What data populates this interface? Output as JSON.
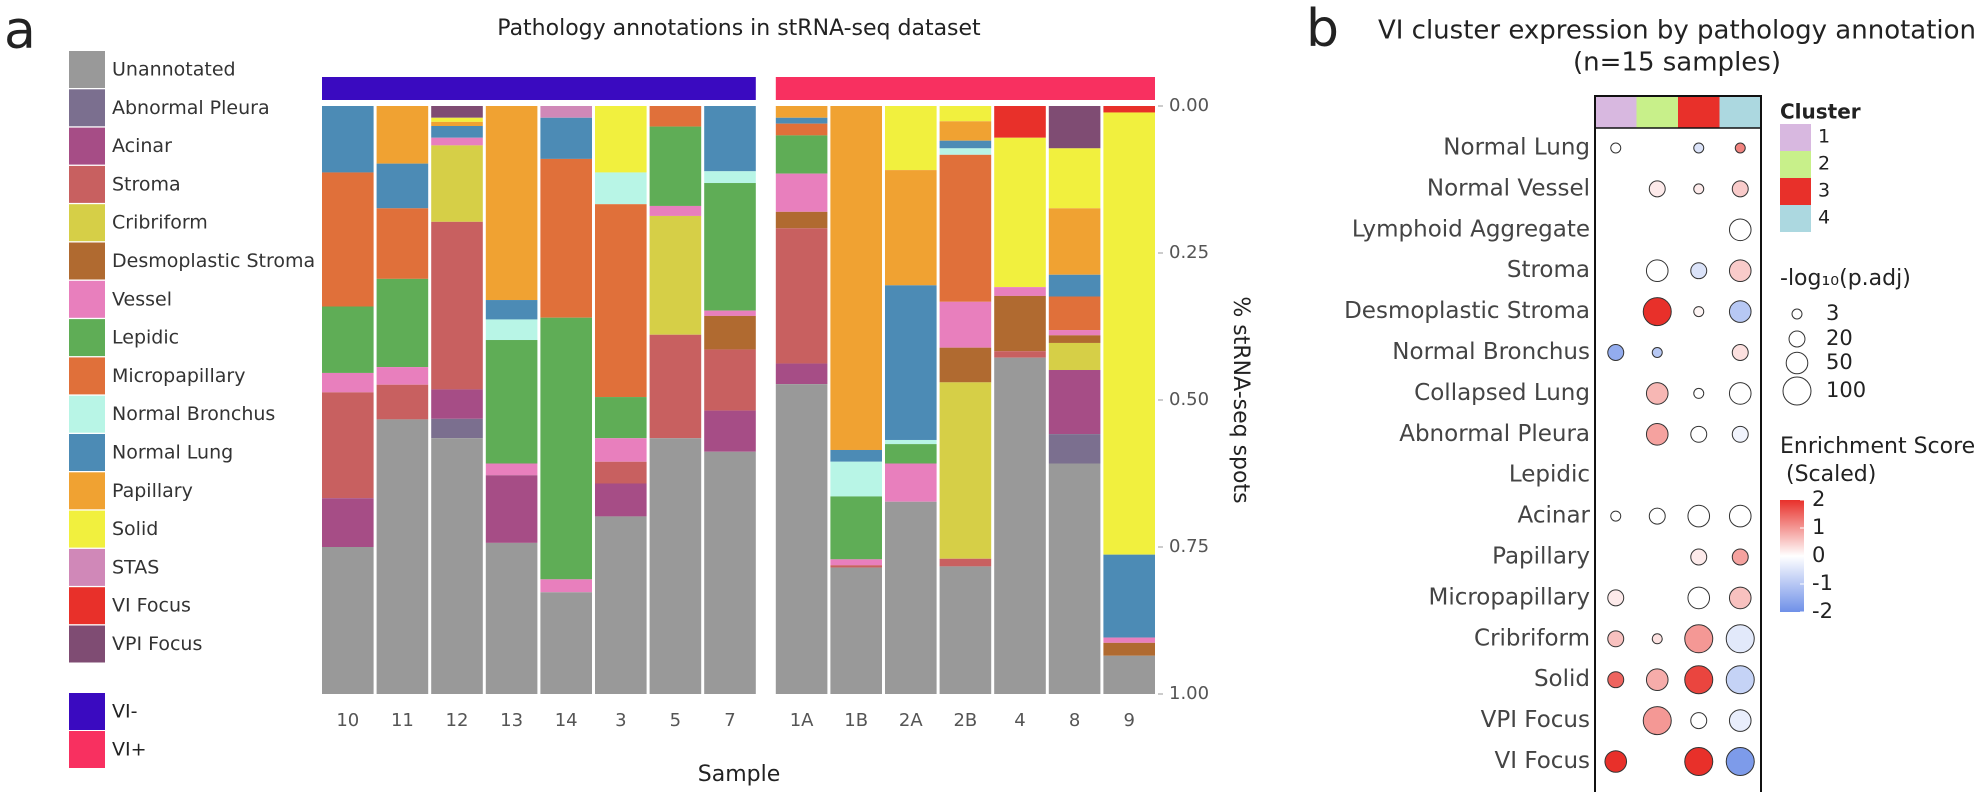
{
  "chart_data": [
    {
      "type": "stacked_bar",
      "panel_label": "a",
      "title": "Pathology annotations in stRNA-seq dataset",
      "xlabel": "Sample",
      "ylabel": "% stRNA-seq spots",
      "categories": [
        "10",
        "11",
        "12",
        "13",
        "14",
        "3",
        "5",
        "7",
        "1A",
        "1B",
        "2A",
        "2B",
        "4",
        "8",
        "9"
      ],
      "ylim": [
        0,
        1
      ],
      "y_inverted": true,
      "yticks": [
        {
          "value": 0,
          "label": "0.00"
        },
        {
          "value": 0.25,
          "label": "0.25"
        },
        {
          "value": 0.5,
          "label": "0.50"
        },
        {
          "value": 0.75,
          "label": "0.75"
        },
        {
          "value": 1,
          "label": "1.00"
        }
      ],
      "groups": [
        {
          "name": "VI-",
          "color": "#3a0ac0",
          "members": [
            "10",
            "11",
            "12",
            "13",
            "14",
            "3",
            "5",
            "7"
          ]
        },
        {
          "name": "VI+",
          "color": "#f83060",
          "members": [
            "1A",
            "1B",
            "2A",
            "2B",
            "4",
            "8",
            "9"
          ]
        }
      ],
      "series": [
        {
          "name": "Unannotated",
          "color": "#999999",
          "values": [
            0.25,
            0.467,
            0.435,
            0.257,
            0.173,
            0.302,
            0.435,
            0.412,
            0.527,
            0.215,
            0.327,
            0.217,
            0.572,
            0.392,
            0.065
          ]
        },
        {
          "name": "Abnormal Pleura",
          "color": "#7b6f8f",
          "values": [
            0,
            0,
            0.033,
            0,
            0,
            0,
            0,
            0,
            0,
            0,
            0,
            0,
            0,
            0.05,
            0
          ]
        },
        {
          "name": "Acinar",
          "color": "#a64d86",
          "values": [
            0.083,
            0,
            0.05,
            0.115,
            0,
            0.056,
            0,
            0.07,
            0.035,
            0,
            0,
            0,
            0,
            0.109,
            0
          ]
        },
        {
          "name": "Stroma",
          "color": "#c86060",
          "values": [
            0.18,
            0.059,
            0.285,
            0,
            0,
            0.037,
            0.176,
            0.104,
            0.23,
            0.004,
            0,
            0.013,
            0.011,
            0,
            0
          ]
        },
        {
          "name": "Cribriform",
          "color": "#d6cf47",
          "values": [
            0,
            0,
            0.13,
            0,
            0,
            0,
            0.202,
            0,
            0,
            0,
            0,
            0.3,
            0,
            0.046,
            0
          ]
        },
        {
          "name": "Desmoplastic Stroma",
          "color": "#b06a30",
          "values": [
            0,
            0,
            0,
            0,
            0,
            0,
            0,
            0.057,
            0.028,
            0,
            0,
            0.059,
            0.094,
            0.013,
            0.022
          ]
        },
        {
          "name": "Vessel",
          "color": "#e87fbd",
          "values": [
            0.033,
            0.03,
            0.013,
            0.02,
            0.022,
            0.04,
            0.017,
            0.009,
            0.065,
            0.01,
            0.065,
            0.078,
            0.015,
            0.009,
            0.009
          ]
        },
        {
          "name": "Lepidic",
          "color": "#5fad56",
          "values": [
            0.113,
            0.15,
            0,
            0.21,
            0.445,
            0.07,
            0.135,
            0.217,
            0.065,
            0.107,
            0.033,
            0,
            0,
            0,
            0
          ]
        },
        {
          "name": "Micropapillary",
          "color": "#e0703a",
          "values": [
            0.228,
            0.12,
            0,
            0,
            0.27,
            0.328,
            0.035,
            0,
            0.02,
            0,
            0,
            0.25,
            0,
            0.057,
            0
          ]
        },
        {
          "name": "Normal Bronchus",
          "color": "#b8f5e6",
          "values": [
            0,
            0,
            0,
            0.035,
            0,
            0.054,
            0,
            0.02,
            0,
            0.059,
            0.007,
            0.011,
            0,
            0,
            0
          ]
        },
        {
          "name": "Normal Lung",
          "color": "#4c8bb5",
          "values": [
            0.113,
            0.076,
            0.02,
            0.033,
            0.07,
            0,
            0,
            0.111,
            0.01,
            0.02,
            0.263,
            0.013,
            0,
            0.037,
            0.141
          ]
        },
        {
          "name": "Papillary",
          "color": "#f0a232",
          "values": [
            0,
            0.098,
            0.007,
            0.33,
            0,
            0,
            0,
            0,
            0.02,
            0.585,
            0.196,
            0.033,
            0,
            0.113,
            0
          ]
        },
        {
          "name": "Solid",
          "color": "#f1f03e",
          "values": [
            0,
            0,
            0.007,
            0,
            0,
            0.113,
            0,
            0,
            0,
            0,
            0.109,
            0.026,
            0.254,
            0.102,
            0.752
          ]
        },
        {
          "name": "STAS",
          "color": "#d088b8",
          "values": [
            0,
            0,
            0,
            0,
            0.02,
            0,
            0,
            0,
            0,
            0,
            0,
            0,
            0,
            0,
            0
          ]
        },
        {
          "name": "VI Focus",
          "color": "#e8302a",
          "values": [
            0,
            0,
            0,
            0,
            0,
            0,
            0,
            0,
            0,
            0,
            0,
            0,
            0.054,
            0,
            0.011
          ]
        },
        {
          "name": "VPI Focus",
          "color": "#7f4c73",
          "values": [
            0,
            0,
            0.02,
            0,
            0,
            0,
            0,
            0,
            0,
            0,
            0,
            0,
            0,
            0.072,
            0
          ]
        }
      ]
    },
    {
      "type": "dot",
      "panel_label": "b",
      "title": "VI cluster expression by pathology annotation",
      "subtitle": "(n=15 samples)",
      "rows": [
        "Normal Lung",
        "Normal Vessel",
        "Lymphoid Aggregate",
        "Stroma",
        "Desmoplastic Stroma",
        "Normal Bronchus",
        "Collapsed Lung",
        "Abnormal Pleura",
        "Lepidic",
        "Acinar",
        "Papillary",
        "Micropapillary",
        "Cribriform",
        "Solid",
        "VPI Focus",
        "VI Focus"
      ],
      "column_legend_title": "Cluster",
      "columns": [
        {
          "name": "1",
          "color": "#d8b8e0"
        },
        {
          "name": "2",
          "color": "#c8f08a"
        },
        {
          "name": "3",
          "color": "#e8302a"
        },
        {
          "name": "4",
          "color": "#acd8e0"
        }
      ],
      "size_values": [
        [
          3,
          null,
          3,
          3
        ],
        [
          null,
          20,
          3,
          20
        ],
        [
          null,
          null,
          null,
          50
        ],
        [
          null,
          50,
          20,
          50
        ],
        [
          null,
          100,
          3,
          50
        ],
        [
          20,
          3,
          null,
          20
        ],
        [
          null,
          50,
          3,
          50
        ],
        [
          null,
          50,
          20,
          20
        ],
        [
          null,
          null,
          null,
          null
        ],
        [
          3,
          20,
          50,
          50
        ],
        [
          null,
          null,
          20,
          20
        ],
        [
          20,
          null,
          50,
          50
        ],
        [
          20,
          3,
          100,
          100
        ],
        [
          20,
          50,
          100,
          100
        ],
        [
          null,
          100,
          20,
          50
        ],
        [
          50,
          null,
          100,
          100
        ]
      ],
      "color_values": [
        [
          0,
          null,
          -0.5,
          1.2
        ],
        [
          null,
          0.2,
          0.2,
          0.5
        ],
        [
          null,
          null,
          null,
          0
        ],
        [
          null,
          0,
          -0.5,
          0.5
        ],
        [
          null,
          2,
          0.1,
          -1
        ],
        [
          -1.5,
          -1,
          null,
          0.3
        ],
        [
          null,
          0.7,
          0,
          0
        ],
        [
          null,
          0.9,
          0,
          -0.2
        ],
        [
          null,
          null,
          null,
          null
        ],
        [
          0,
          0,
          0,
          0
        ],
        [
          null,
          null,
          0.2,
          0.9
        ],
        [
          0.2,
          null,
          0,
          0.6
        ],
        [
          0.6,
          0.3,
          1,
          -0.4
        ],
        [
          1.5,
          0.8,
          1.8,
          -0.8
        ],
        [
          null,
          1,
          0,
          -0.3
        ],
        [
          2.3,
          null,
          2.2,
          -1.8
        ]
      ],
      "size_legend": {
        "title": "-log₁₀(p.adj)",
        "values": [
          3,
          20,
          50,
          100
        ]
      },
      "color_legend": {
        "title": [
          "Enrichment Score",
          "(Scaled)"
        ],
        "lim": [
          -2,
          2
        ],
        "ticks": [
          2,
          1,
          0,
          -1,
          -2
        ],
        "colors": [
          "#6f90e8",
          "#ffffff",
          "#e8302a"
        ]
      }
    }
  ]
}
